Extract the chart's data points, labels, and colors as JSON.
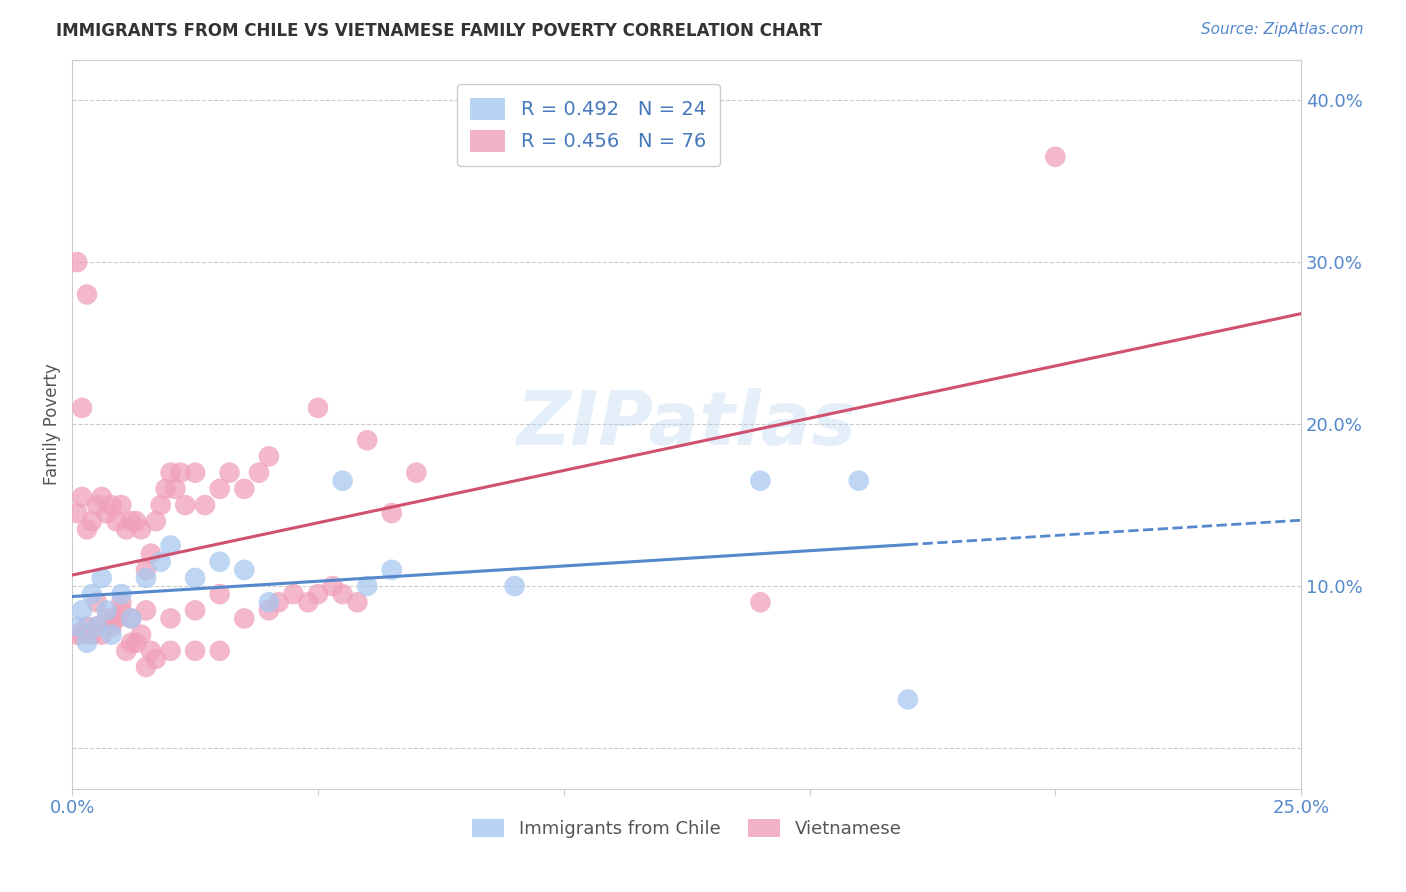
{
  "title": "IMMIGRANTS FROM CHILE VS VIETNAMESE FAMILY POVERTY CORRELATION CHART",
  "source": "Source: ZipAtlas.com",
  "ylabel": "Family Poverty",
  "xlim": [
    0.0,
    0.25
  ],
  "ylim": [
    -0.025,
    0.425
  ],
  "yticks": [
    0.0,
    0.1,
    0.2,
    0.3,
    0.4
  ],
  "ytick_labels": [
    "",
    "10.0%",
    "20.0%",
    "30.0%",
    "40.0%"
  ],
  "xticks": [
    0.0,
    0.05,
    0.1,
    0.15,
    0.2,
    0.25
  ],
  "xtick_labels": [
    "0.0%",
    "",
    "",
    "",
    "",
    "25.0%"
  ],
  "chile_color": "#A8C8F0",
  "viet_color": "#F0A0B8",
  "chile_line_color": "#5588CC",
  "viet_line_color": "#D05070",
  "watermark": "ZIPatlas",
  "chile_scatter_x": [
    0.001,
    0.002,
    0.003,
    0.004,
    0.005,
    0.006,
    0.007,
    0.008,
    0.01,
    0.012,
    0.015,
    0.018,
    0.02,
    0.025,
    0.03,
    0.035,
    0.04,
    0.055,
    0.06,
    0.065,
    0.09,
    0.14,
    0.16,
    0.17
  ],
  "chile_scatter_y": [
    0.075,
    0.085,
    0.065,
    0.095,
    0.075,
    0.105,
    0.085,
    0.07,
    0.095,
    0.08,
    0.105,
    0.115,
    0.125,
    0.105,
    0.115,
    0.11,
    0.09,
    0.165,
    0.1,
    0.11,
    0.1,
    0.165,
    0.165,
    0.03
  ],
  "viet_scatter_x": [
    0.001,
    0.002,
    0.003,
    0.004,
    0.005,
    0.006,
    0.007,
    0.008,
    0.009,
    0.01,
    0.011,
    0.012,
    0.013,
    0.014,
    0.015,
    0.016,
    0.017,
    0.018,
    0.019,
    0.02,
    0.001,
    0.002,
    0.003,
    0.004,
    0.005,
    0.006,
    0.007,
    0.008,
    0.009,
    0.01,
    0.011,
    0.012,
    0.013,
    0.014,
    0.015,
    0.016,
    0.017,
    0.02,
    0.025,
    0.03,
    0.001,
    0.002,
    0.003,
    0.005,
    0.008,
    0.01,
    0.012,
    0.015,
    0.02,
    0.025,
    0.03,
    0.035,
    0.04,
    0.05,
    0.021,
    0.022,
    0.023,
    0.025,
    0.027,
    0.03,
    0.032,
    0.035,
    0.038,
    0.04,
    0.042,
    0.045,
    0.048,
    0.05,
    0.053,
    0.055,
    0.058,
    0.06,
    0.065,
    0.07,
    0.14,
    0.2
  ],
  "viet_scatter_y": [
    0.145,
    0.155,
    0.135,
    0.14,
    0.15,
    0.155,
    0.145,
    0.15,
    0.14,
    0.15,
    0.135,
    0.14,
    0.14,
    0.135,
    0.11,
    0.12,
    0.14,
    0.15,
    0.16,
    0.17,
    0.07,
    0.07,
    0.075,
    0.07,
    0.075,
    0.07,
    0.08,
    0.075,
    0.08,
    0.085,
    0.06,
    0.065,
    0.065,
    0.07,
    0.05,
    0.06,
    0.055,
    0.06,
    0.06,
    0.06,
    0.3,
    0.21,
    0.28,
    0.09,
    0.08,
    0.09,
    0.08,
    0.085,
    0.08,
    0.085,
    0.095,
    0.08,
    0.085,
    0.21,
    0.16,
    0.17,
    0.15,
    0.17,
    0.15,
    0.16,
    0.17,
    0.16,
    0.17,
    0.18,
    0.09,
    0.095,
    0.09,
    0.095,
    0.1,
    0.095,
    0.09,
    0.19,
    0.145,
    0.17,
    0.09,
    0.365
  ]
}
